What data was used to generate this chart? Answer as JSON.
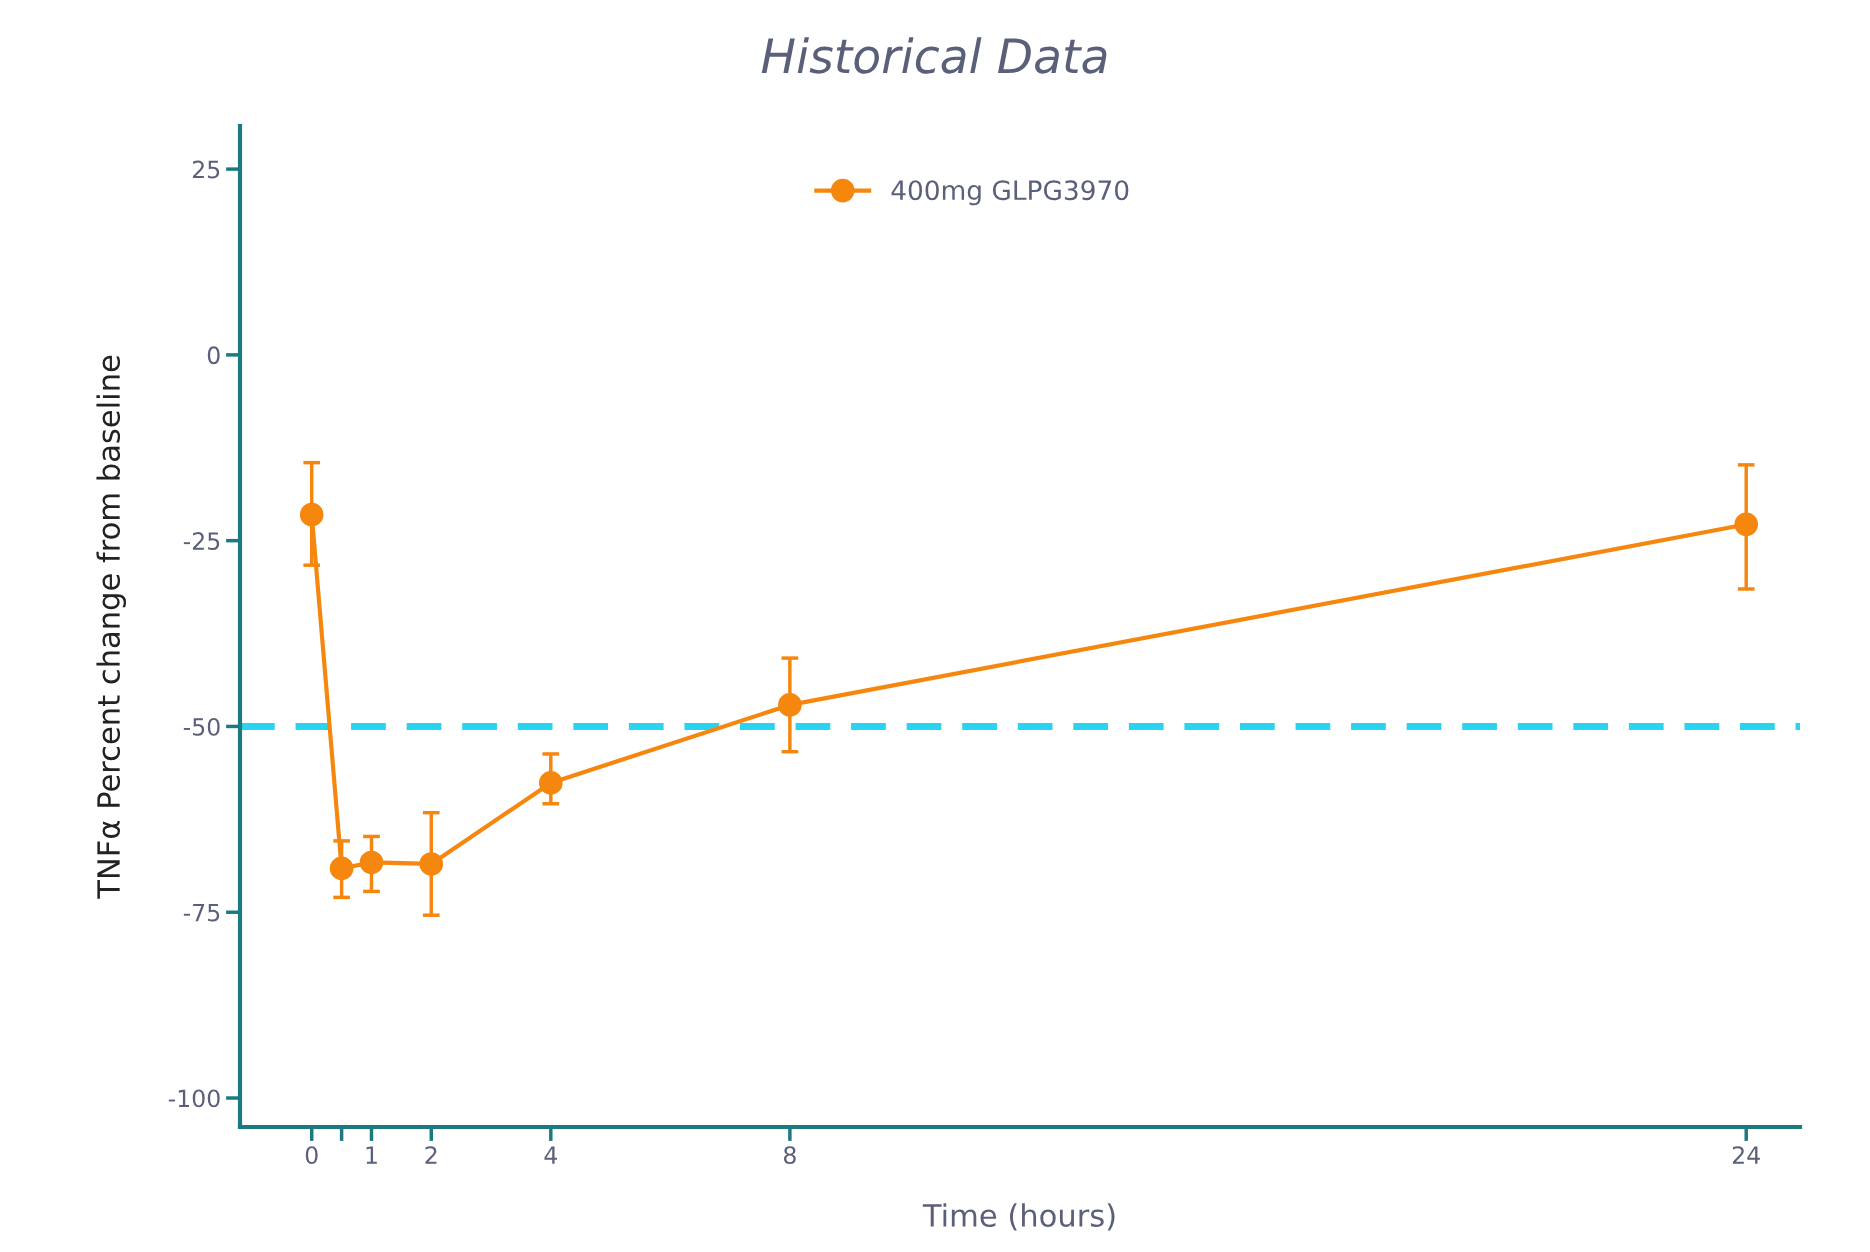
{
  "chart_data": {
    "type": "line",
    "title": "Historical Data",
    "xlabel": "Time (hours)",
    "ylabel": "TNFα Percent change from baseline",
    "x": [
      0,
      0.5,
      1,
      2,
      4,
      8,
      24
    ],
    "series": [
      {
        "name": "400mg GLPG3970",
        "color": "#f5870f",
        "values": [
          -21.5,
          -69.1,
          -68.3,
          -68.5,
          -57.6,
          -47.1,
          -22.8
        ],
        "errors": [
          [
            -28.3,
            -14.5
          ],
          [
            -73,
            -65.4
          ],
          [
            -72.2,
            -64.8
          ],
          [
            -75.4,
            -61.6
          ],
          [
            -60.4,
            -53.7
          ],
          [
            -53.4,
            -40.8
          ],
          [
            -31.5,
            -14.8
          ]
        ]
      }
    ],
    "xlim": [
      -1.2,
      24.9
    ],
    "ylim": [
      -103.9,
      30.8
    ],
    "xticks": [
      0,
      {
        "value": 0.5,
        "label": null
      },
      1,
      2,
      4,
      8,
      24
    ],
    "yticks": [
      25,
      0,
      -25,
      -50,
      -75,
      -100
    ],
    "ref_lines": [
      {
        "axis": "y",
        "value": -50,
        "color": "#29d4f0",
        "line_style": "dashed"
      }
    ],
    "marker": "circle",
    "line_style": "solid",
    "grid": false,
    "legend": "top"
  }
}
